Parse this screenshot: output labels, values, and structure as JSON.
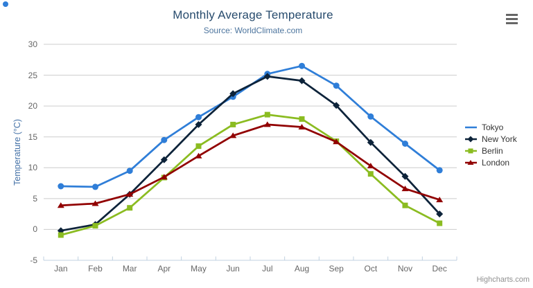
{
  "credits": {
    "label": "Highcharts.com"
  },
  "export_menu": {
    "icon": "hamburger-menu-icon"
  },
  "colors": {
    "background": "#ffffff",
    "title": "#274b6d",
    "subtitle": "#4d759e",
    "axis_title": "#4572a7",
    "tick_label": "#666666",
    "grid": "#cccccc",
    "axis_line": "#c0d0e0",
    "legend_text": "#333333",
    "credits": "#909090",
    "menu_icon": "#666666"
  },
  "chart_data": {
    "type": "line",
    "title": "Monthly Average Temperature",
    "subtitle": "Source: WorldClimate.com",
    "xlabel": "",
    "ylabel": "Temperature (°C)",
    "categories": [
      "Jan",
      "Feb",
      "Mar",
      "Apr",
      "May",
      "Jun",
      "Jul",
      "Aug",
      "Sep",
      "Oct",
      "Nov",
      "Dec"
    ],
    "ylim": [
      -5,
      30
    ],
    "yticks": [
      -5,
      0,
      5,
      10,
      15,
      20,
      25,
      30
    ],
    "grid": true,
    "legend_position": "right",
    "series": [
      {
        "name": "Tokyo",
        "color": "#2f7ed8",
        "marker": "circle",
        "values": [
          7.0,
          6.9,
          9.5,
          14.5,
          18.2,
          21.5,
          25.2,
          26.5,
          23.3,
          18.3,
          13.9,
          9.6
        ]
      },
      {
        "name": "New York",
        "color": "#0d233a",
        "marker": "diamond",
        "values": [
          -0.2,
          0.8,
          5.7,
          11.3,
          17.0,
          22.0,
          24.8,
          24.1,
          20.1,
          14.1,
          8.6,
          2.5
        ]
      },
      {
        "name": "Berlin",
        "color": "#8bbc21",
        "marker": "square",
        "values": [
          -0.9,
          0.6,
          3.5,
          8.4,
          13.5,
          17.0,
          18.6,
          17.9,
          14.3,
          9.0,
          3.9,
          1.0
        ]
      },
      {
        "name": "London",
        "color": "#910000",
        "marker": "triangle",
        "values": [
          3.9,
          4.2,
          5.7,
          8.5,
          11.9,
          15.2,
          17.0,
          16.6,
          14.2,
          10.3,
          6.6,
          4.8
        ]
      }
    ]
  }
}
